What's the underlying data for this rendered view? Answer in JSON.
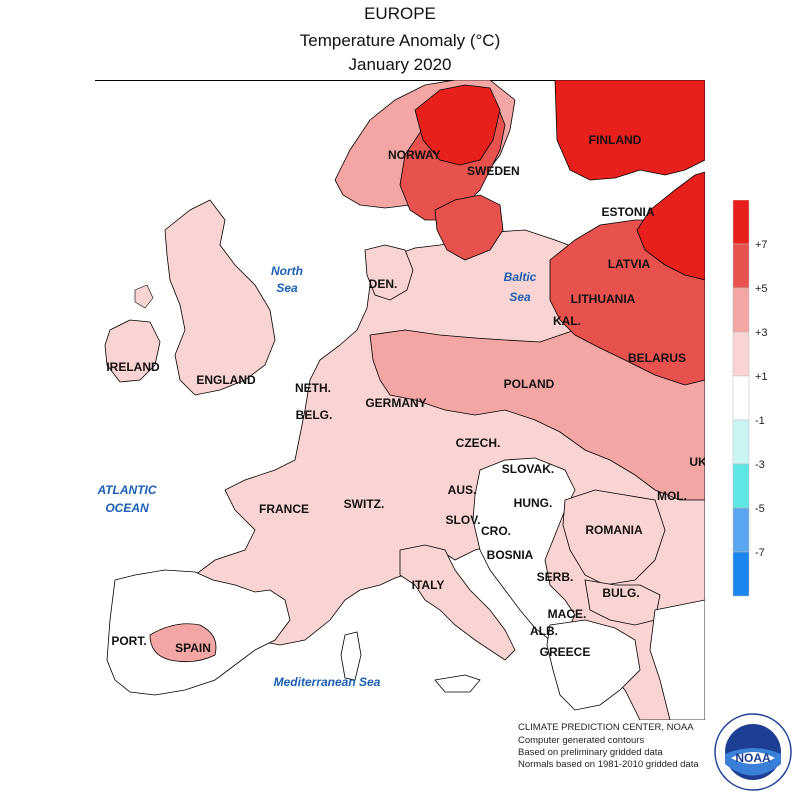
{
  "header": {
    "title": "EUROPE",
    "subtitle": "Temperature Anomaly (°C)",
    "period": "January 2020"
  },
  "map": {
    "countries": [
      {
        "key": "norway",
        "label": "NORWAY"
      },
      {
        "key": "sweden",
        "label": "SWEDEN"
      },
      {
        "key": "finland",
        "label": "FINLAND"
      },
      {
        "key": "estonia",
        "label": "ESTONIA"
      },
      {
        "key": "latvia",
        "label": "LATVIA"
      },
      {
        "key": "lithuania",
        "label": "LITHUANIA"
      },
      {
        "key": "kaliningrad",
        "label": "KAL."
      },
      {
        "key": "belarus",
        "label": "BELARUS"
      },
      {
        "key": "denmark",
        "label": "DEN."
      },
      {
        "key": "ireland",
        "label": "IRELAND"
      },
      {
        "key": "england",
        "label": "ENGLAND"
      },
      {
        "key": "netherlands",
        "label": "NETH."
      },
      {
        "key": "belgium",
        "label": "BELG."
      },
      {
        "key": "germany",
        "label": "GERMANY"
      },
      {
        "key": "poland",
        "label": "POLAND"
      },
      {
        "key": "czech",
        "label": "CZECH."
      },
      {
        "key": "ukraine",
        "label": "UK"
      },
      {
        "key": "slovakia",
        "label": "SLOVAK."
      },
      {
        "key": "austria",
        "label": "AUS."
      },
      {
        "key": "hungary",
        "label": "HUNG."
      },
      {
        "key": "moldova",
        "label": "MOL."
      },
      {
        "key": "switzerland",
        "label": "SWITZ."
      },
      {
        "key": "slovenia",
        "label": "SLOV."
      },
      {
        "key": "croatia",
        "label": "CRO."
      },
      {
        "key": "romania",
        "label": "ROMANIA"
      },
      {
        "key": "france",
        "label": "FRANCE"
      },
      {
        "key": "bosnia",
        "label": "BOSNIA"
      },
      {
        "key": "serbia",
        "label": "SERB."
      },
      {
        "key": "italy",
        "label": "ITALY"
      },
      {
        "key": "bulgaria",
        "label": "BULG."
      },
      {
        "key": "macedonia",
        "label": "MACE."
      },
      {
        "key": "albania",
        "label": "ALB."
      },
      {
        "key": "portugal",
        "label": "PORT."
      },
      {
        "key": "spain",
        "label": "SPAIN"
      },
      {
        "key": "greece",
        "label": "GREECE"
      }
    ],
    "seas": [
      {
        "key": "north_sea_1",
        "label": "North"
      },
      {
        "key": "north_sea_2",
        "label": "Sea"
      },
      {
        "key": "baltic_1",
        "label": "Baltic"
      },
      {
        "key": "baltic_2",
        "label": "Sea"
      },
      {
        "key": "atlantic_1",
        "label": "ATLANTIC"
      },
      {
        "key": "atlantic_2",
        "label": "OCEAN"
      },
      {
        "key": "med",
        "label": "Mediterranean Sea"
      }
    ],
    "colors": {
      "ocean": "#ffffff",
      "anom_1_3": "#f9d4d3",
      "anom_3_5": "#f3a6a4",
      "anom_5_7": "#e8524e",
      "anom_gt7": "#e8201c",
      "anom_m1_1": "#ffffff",
      "anom_m1_m3": "#c9f6f4",
      "anom_m3_m5": "#5ce6e4",
      "anom_m5_m7": "#5aa6ee",
      "anom_lt_m7": "#1a86ee",
      "border": "#000000"
    }
  },
  "legend": {
    "bins": [
      {
        "color": "#e8201c",
        "label": "+7"
      },
      {
        "color": "#e8524e",
        "label": "+5"
      },
      {
        "color": "#f3a6a4",
        "label": "+3"
      },
      {
        "color": "#f9d4d3",
        "label": "+1"
      },
      {
        "color": "#ffffff",
        "label": "-1"
      },
      {
        "color": "#c9f6f4",
        "label": "-3"
      },
      {
        "color": "#5ce6e4",
        "label": "-5"
      },
      {
        "color": "#5aa6ee",
        "label": "-7"
      },
      {
        "color": "#1a86ee",
        "label": ""
      }
    ]
  },
  "credits": {
    "line1": "CLIMATE PREDICTION CENTER, NOAA",
    "line2": "Computer generated contours",
    "line3": "Based on preliminary gridded data",
    "line4": "Normals based on 1981-2010 gridded data"
  },
  "logo": {
    "text": "NOAA",
    "ring_text": "NATIONAL OCEANIC AND ATMOSPHERIC ADMINISTRATION · U.S. DEPARTMENT OF COMMERCE"
  }
}
